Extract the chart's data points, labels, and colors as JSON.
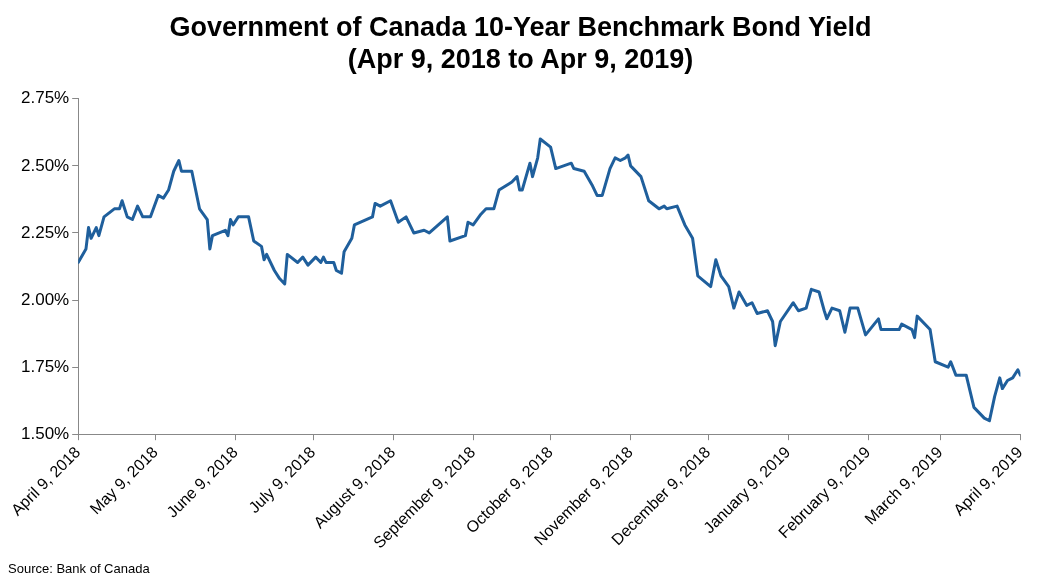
{
  "chart_data": {
    "type": "line",
    "title": "Government of Canada 10-Year Benchmark Bond Yield",
    "subtitle": "(Apr 9, 2018 to Apr 9, 2019)",
    "annotations": [
      "Source: Bank of Canada"
    ],
    "x": [
      "2018-04-09",
      "2018-04-12",
      "2018-04-13",
      "2018-04-14",
      "2018-04-16",
      "2018-04-17",
      "2018-04-19",
      "2018-04-23",
      "2018-04-25",
      "2018-04-26",
      "2018-04-28",
      "2018-04-30",
      "2018-05-02",
      "2018-05-04",
      "2018-05-07",
      "2018-05-10",
      "2018-05-12",
      "2018-05-14",
      "2018-05-16",
      "2018-05-18",
      "2018-05-19",
      "2018-05-23",
      "2018-05-26",
      "2018-05-29",
      "2018-05-30",
      "2018-05-31",
      "2018-06-05",
      "2018-06-06",
      "2018-06-07",
      "2018-06-08",
      "2018-06-10",
      "2018-06-14",
      "2018-06-16",
      "2018-06-19",
      "2018-06-20",
      "2018-06-21",
      "2018-06-24",
      "2018-06-26",
      "2018-06-28",
      "2018-06-29",
      "2018-07-03",
      "2018-07-05",
      "2018-07-07",
      "2018-07-10",
      "2018-07-12",
      "2018-07-13",
      "2018-07-14",
      "2018-07-17",
      "2018-07-18",
      "2018-07-20",
      "2018-07-21",
      "2018-07-24",
      "2018-07-25",
      "2018-08-01",
      "2018-08-02",
      "2018-08-04",
      "2018-08-08",
      "2018-08-11",
      "2018-08-14",
      "2018-08-17",
      "2018-08-21",
      "2018-08-23",
      "2018-08-30",
      "2018-08-31",
      "2018-09-06",
      "2018-09-07",
      "2018-09-09",
      "2018-09-12",
      "2018-09-14",
      "2018-09-17",
      "2018-09-19",
      "2018-09-24",
      "2018-09-26",
      "2018-09-27",
      "2018-09-28",
      "2018-10-01",
      "2018-10-02",
      "2018-10-04",
      "2018-10-05",
      "2018-10-09",
      "2018-10-11",
      "2018-10-17",
      "2018-10-18",
      "2018-10-22",
      "2018-10-25",
      "2018-10-27",
      "2018-10-29",
      "2018-11-01",
      "2018-11-03",
      "2018-11-05",
      "2018-11-07",
      "2018-11-08",
      "2018-11-09",
      "2018-11-13",
      "2018-11-16",
      "2018-11-20",
      "2018-11-22",
      "2018-11-23",
      "2018-11-27",
      "2018-11-30",
      "2018-12-03",
      "2018-12-05",
      "2018-12-10",
      "2018-12-12",
      "2018-12-14",
      "2018-12-17",
      "2018-12-19",
      "2018-12-21",
      "2018-12-24",
      "2018-12-26",
      "2018-12-28",
      "2019-01-01",
      "2019-01-03",
      "2019-01-04",
      "2019-01-06",
      "2019-01-11",
      "2019-01-13",
      "2019-01-16",
      "2019-01-18",
      "2019-01-21",
      "2019-01-23",
      "2019-01-24",
      "2019-01-26",
      "2019-01-29",
      "2019-01-31",
      "2019-02-02",
      "2019-02-05",
      "2019-02-08",
      "2019-02-13",
      "2019-02-14",
      "2019-02-21",
      "2019-02-22",
      "2019-02-26",
      "2019-02-27",
      "2019-02-28",
      "2019-03-05",
      "2019-03-07",
      "2019-03-12",
      "2019-03-13",
      "2019-03-15",
      "2019-03-19",
      "2019-03-22",
      "2019-03-26",
      "2019-03-28",
      "2019-03-30",
      "2019-04-01",
      "2019-04-02",
      "2019-04-04",
      "2019-04-06",
      "2019-04-08",
      "2019-04-09"
    ],
    "series": [
      {
        "color": "#1f5f9c",
        "values": [
          2.14,
          2.19,
          2.27,
          2.23,
          2.27,
          2.24,
          2.31,
          2.34,
          2.34,
          2.37,
          2.31,
          2.3,
          2.35,
          2.31,
          2.31,
          2.39,
          2.38,
          2.41,
          2.48,
          2.52,
          2.48,
          2.48,
          2.34,
          2.3,
          2.19,
          2.24,
          2.26,
          2.24,
          2.3,
          2.28,
          2.31,
          2.31,
          2.22,
          2.2,
          2.15,
          2.17,
          2.11,
          2.08,
          2.06,
          2.17,
          2.14,
          2.16,
          2.13,
          2.16,
          2.14,
          2.16,
          2.14,
          2.14,
          2.11,
          2.1,
          2.18,
          2.23,
          2.28,
          2.31,
          2.36,
          2.35,
          2.37,
          2.29,
          2.31,
          2.25,
          2.26,
          2.25,
          2.31,
          2.22,
          2.24,
          2.29,
          2.28,
          2.32,
          2.34,
          2.34,
          2.41,
          2.44,
          2.46,
          2.41,
          2.41,
          2.51,
          2.46,
          2.53,
          2.6,
          2.57,
          2.49,
          2.51,
          2.49,
          2.48,
          2.43,
          2.39,
          2.39,
          2.49,
          2.53,
          2.52,
          2.53,
          2.54,
          2.5,
          2.46,
          2.37,
          2.34,
          2.35,
          2.34,
          2.35,
          2.28,
          2.23,
          2.09,
          2.05,
          2.15,
          2.09,
          2.05,
          1.97,
          2.03,
          1.98,
          1.99,
          1.95,
          1.96,
          1.92,
          1.83,
          1.92,
          1.99,
          1.96,
          1.97,
          2.04,
          2.03,
          1.96,
          1.93,
          1.97,
          1.96,
          1.88,
          1.97,
          1.97,
          1.87,
          1.93,
          1.89,
          1.89,
          1.91,
          1.89,
          1.86,
          1.94,
          1.89,
          1.77,
          1.75,
          1.77,
          1.72,
          1.72,
          1.6,
          1.56,
          1.55,
          1.64,
          1.71,
          1.67,
          1.7,
          1.71,
          1.74,
          1.72
        ]
      }
    ],
    "xlim": [
      "2018-04-09",
      "2019-04-09"
    ],
    "xticks": [
      {
        "value": "2018-04-09",
        "label": "April 9, 2018"
      },
      {
        "value": "2018-05-09",
        "label": "May 9, 2018"
      },
      {
        "value": "2018-06-09",
        "label": "June 9, 2018"
      },
      {
        "value": "2018-07-09",
        "label": "July 9, 2018"
      },
      {
        "value": "2018-08-09",
        "label": "August 9, 2018"
      },
      {
        "value": "2018-09-09",
        "label": "September 9, 2018"
      },
      {
        "value": "2018-10-09",
        "label": "October 9, 2018"
      },
      {
        "value": "2018-11-09",
        "label": "November 9, 2018"
      },
      {
        "value": "2018-12-09",
        "label": "December 9, 2018"
      },
      {
        "value": "2019-01-09",
        "label": "January 9, 2019"
      },
      {
        "value": "2019-02-09",
        "label": "February 9, 2019"
      },
      {
        "value": "2019-03-09",
        "label": "March 9, 2019"
      },
      {
        "value": "2019-04-09",
        "label": "April 9, 2019"
      }
    ],
    "ylim": [
      1.5,
      2.75
    ],
    "yticks": [
      {
        "value": 1.5,
        "label": "1.50%"
      },
      {
        "value": 1.75,
        "label": "1.75%"
      },
      {
        "value": 2,
        "label": "2.00%"
      },
      {
        "value": 2.25,
        "label": "2.25%"
      },
      {
        "value": 2.5,
        "label": "2.50%"
      },
      {
        "value": 2.75,
        "label": "2.75%"
      }
    ],
    "grid": false,
    "legend": false,
    "marker": "none",
    "line_style": "solid"
  }
}
